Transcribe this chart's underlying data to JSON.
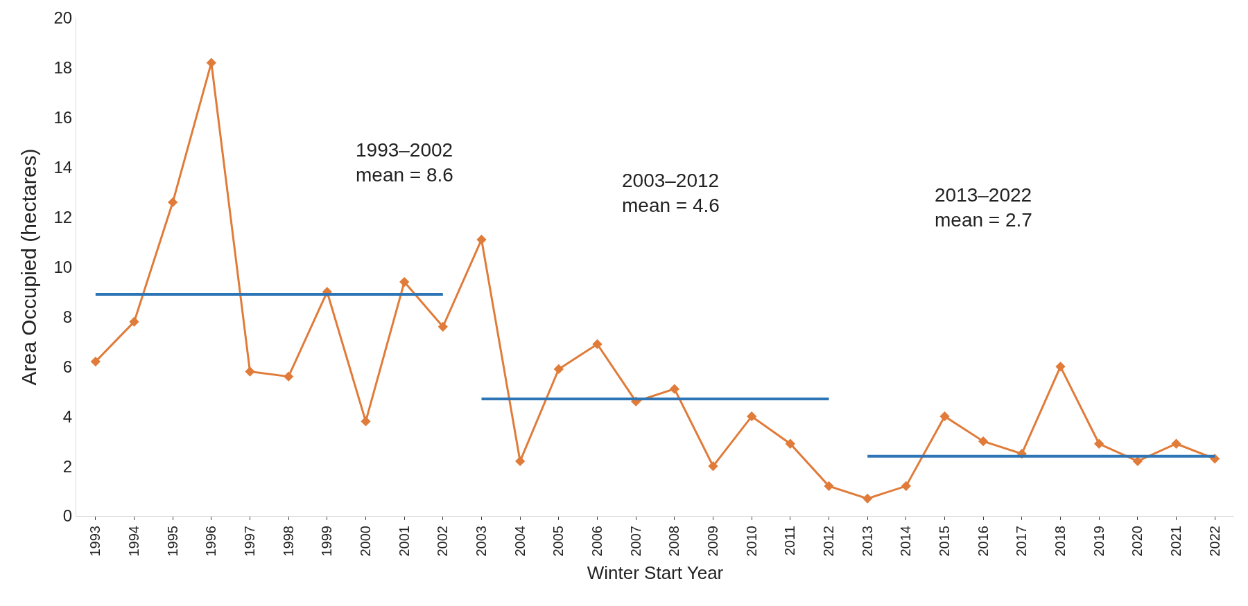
{
  "chart_data": {
    "type": "line",
    "xlabel": "Winter Start Year",
    "ylabel": "Area Occupied (hectares)",
    "categories": [
      "1993",
      "1994",
      "1995",
      "1996",
      "1997",
      "1998",
      "1999",
      "2000",
      "2001",
      "2002",
      "2003",
      "2004",
      "2005",
      "2006",
      "2007",
      "2008",
      "2009",
      "2010",
      "2011",
      "2012",
      "2013",
      "2014",
      "2015",
      "2016",
      "2017",
      "2018",
      "2019",
      "2020",
      "2021",
      "2022"
    ],
    "series": [
      {
        "color": "#e07b39",
        "marker": "diamond",
        "values": [
          6.2,
          7.8,
          12.6,
          18.2,
          5.8,
          5.6,
          9.0,
          3.8,
          9.4,
          7.6,
          11.1,
          2.2,
          5.9,
          6.9,
          4.6,
          5.1,
          2.0,
          4.0,
          2.9,
          1.2,
          0.7,
          1.2,
          4.0,
          3.0,
          2.5,
          6.0,
          2.9,
          2.2,
          2.9,
          2.3
        ]
      },
      {
        "color": "#2e75b6",
        "marker": "none",
        "values": [
          8.9,
          8.9,
          8.9,
          8.9,
          8.9,
          8.9,
          8.9,
          8.9,
          8.9,
          8.9,
          null,
          null,
          null,
          null,
          null,
          null,
          null,
          null,
          null,
          null,
          null,
          null,
          null,
          null,
          null,
          null,
          null,
          null,
          null,
          null
        ]
      },
      {
        "color": "#2e75b6",
        "marker": "none",
        "values": [
          null,
          null,
          null,
          null,
          null,
          null,
          null,
          null,
          null,
          null,
          4.7,
          4.7,
          4.7,
          4.7,
          4.7,
          4.7,
          4.7,
          4.7,
          4.7,
          4.7,
          null,
          null,
          null,
          null,
          null,
          null,
          null,
          null,
          null,
          null
        ]
      },
      {
        "color": "#2e75b6",
        "marker": "none",
        "values": [
          null,
          null,
          null,
          null,
          null,
          null,
          null,
          null,
          null,
          null,
          null,
          null,
          null,
          null,
          null,
          null,
          null,
          null,
          null,
          null,
          2.4,
          2.4,
          2.4,
          2.4,
          2.4,
          2.4,
          2.4,
          2.4,
          2.4,
          2.4
        ]
      }
    ],
    "annotations": [
      "1993–2002\nmean = 8.6",
      "2003–2012\nmean = 4.6",
      "2013–2022\nmean = 2.7"
    ],
    "ylim": [
      0,
      20
    ],
    "yticks": [
      0,
      2,
      4,
      6,
      8,
      10,
      12,
      14,
      16,
      18,
      20
    ]
  }
}
